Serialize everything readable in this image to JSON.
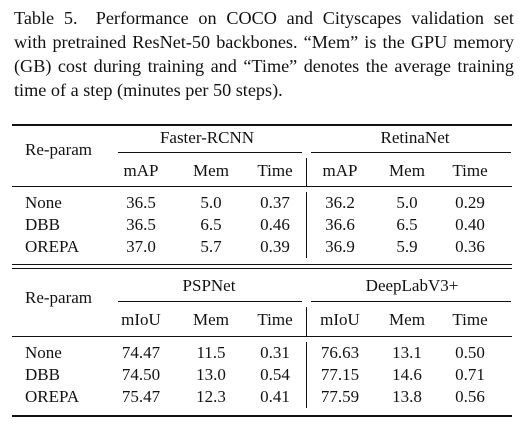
{
  "caption": "Table 5. Performance on COCO and Cityscapes validation set with pretrained ResNet-50 backbones. “Mem” is the GPU memory (GB) cost during training and “Time” denotes the average training time of a step (minutes per 50 steps).",
  "table1": {
    "row_header": "Re-param",
    "groups": [
      "Faster-RCNN",
      "RetinaNet"
    ],
    "columns": [
      "mAP",
      "Mem",
      "Time",
      "mAP",
      "Mem",
      "Time"
    ],
    "rows": [
      {
        "name": "None",
        "values": [
          "36.5",
          "5.0",
          "0.37",
          "36.2",
          "5.0",
          "0.29"
        ]
      },
      {
        "name": "DBB",
        "values": [
          "36.5",
          "6.5",
          "0.46",
          "36.6",
          "6.5",
          "0.40"
        ]
      },
      {
        "name": "OREPA",
        "values": [
          "37.0",
          "5.7",
          "0.39",
          "36.9",
          "5.9",
          "0.36"
        ]
      }
    ]
  },
  "table2": {
    "row_header": "Re-param",
    "groups": [
      "PSPNet",
      "DeepLabV3+"
    ],
    "columns": [
      "mIoU",
      "Mem",
      "Time",
      "mIoU",
      "Mem",
      "Time"
    ],
    "rows": [
      {
        "name": "None",
        "values": [
          "74.47",
          "11.5",
          "0.31",
          "76.63",
          "13.1",
          "0.50"
        ]
      },
      {
        "name": "DBB",
        "values": [
          "74.50",
          "13.0",
          "0.54",
          "77.15",
          "14.6",
          "0.71"
        ]
      },
      {
        "name": "OREPA",
        "values": [
          "75.47",
          "12.3",
          "0.41",
          "77.59",
          "13.8",
          "0.56"
        ]
      }
    ]
  }
}
